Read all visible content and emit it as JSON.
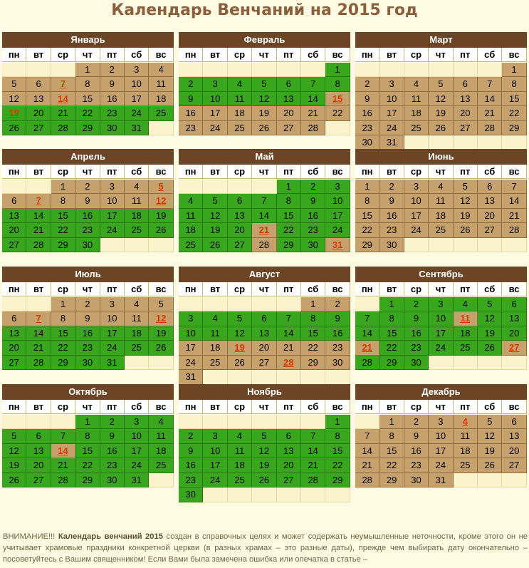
{
  "title": "Календарь Венчаний на 2015 год",
  "weekdays": [
    "пн",
    "вт",
    "ср",
    "чт",
    "пт",
    "сб",
    "вс"
  ],
  "colors": {
    "background": "#fffbe3",
    "header": "#6b4526",
    "allowed": "#38a71e",
    "not_allowed": "#c6a16c",
    "holiday_text": "#d83a00",
    "title": "#8b5e3c"
  },
  "months": [
    {
      "name": "Январь",
      "start": 3,
      "days": 31,
      "green": [
        19,
        20,
        21,
        22,
        23,
        24,
        25,
        26,
        27,
        28,
        29,
        30,
        31
      ],
      "hol": [
        7,
        14,
        19
      ]
    },
    {
      "name": "Февраль",
      "start": 6,
      "days": 28,
      "green": [
        1,
        2,
        3,
        4,
        5,
        6,
        7,
        8,
        9,
        10,
        11,
        12,
        13,
        14
      ],
      "hol": [
        15
      ]
    },
    {
      "name": "Март",
      "start": 6,
      "days": 31,
      "green": [],
      "hol": []
    },
    {
      "name": "Апрель",
      "start": 2,
      "days": 30,
      "green": [
        13,
        14,
        15,
        16,
        17,
        18,
        19,
        20,
        21,
        22,
        23,
        24,
        25,
        26,
        27,
        28,
        29,
        30
      ],
      "hol": [
        5,
        7,
        12
      ]
    },
    {
      "name": "Май",
      "start": 4,
      "days": 31,
      "green": [
        1,
        2,
        3,
        4,
        5,
        6,
        7,
        8,
        9,
        10,
        11,
        12,
        13,
        14,
        15,
        16,
        17,
        18,
        19,
        20,
        22,
        23,
        24,
        25,
        26,
        27,
        29,
        30
      ],
      "hol": [
        21,
        31
      ]
    },
    {
      "name": "Июнь",
      "start": 0,
      "days": 30,
      "green": [],
      "hol": []
    },
    {
      "name": "Июль",
      "start": 2,
      "days": 31,
      "green": [
        13,
        14,
        15,
        16,
        17,
        18,
        19,
        20,
        21,
        22,
        23,
        24,
        25,
        26,
        27,
        28,
        29,
        30,
        31
      ],
      "hol": [
        7,
        12
      ]
    },
    {
      "name": "Август",
      "start": 5,
      "days": 31,
      "green": [
        3,
        4,
        5,
        6,
        7,
        8,
        9,
        10,
        11,
        12,
        13,
        14,
        15,
        16
      ],
      "hol": [
        19,
        28
      ]
    },
    {
      "name": "Сентябрь",
      "start": 1,
      "days": 30,
      "green": [
        1,
        2,
        3,
        4,
        5,
        6,
        7,
        8,
        9,
        10,
        12,
        13,
        14,
        15,
        16,
        17,
        18,
        19,
        20,
        22,
        23,
        24,
        25,
        26,
        28,
        29,
        30
      ],
      "hol": [
        11,
        21,
        27
      ]
    },
    {
      "name": "Октябрь",
      "start": 3,
      "days": 31,
      "green": [
        1,
        2,
        3,
        4,
        5,
        6,
        7,
        8,
        9,
        10,
        11,
        12,
        13,
        15,
        16,
        17,
        18,
        19,
        20,
        21,
        22,
        23,
        24,
        25,
        26,
        27,
        28,
        29,
        30,
        31
      ],
      "hol": [
        14
      ]
    },
    {
      "name": "Ноябрь",
      "start": 6,
      "days": 30,
      "green": [
        1,
        2,
        3,
        4,
        5,
        6,
        7,
        8,
        9,
        10,
        11,
        12,
        13,
        14,
        15,
        16,
        17,
        18,
        19,
        20,
        21,
        22,
        23,
        24,
        25,
        26,
        27,
        28,
        29,
        30
      ],
      "hol": []
    },
    {
      "name": "Декабрь",
      "start": 1,
      "days": 31,
      "green": [],
      "hol": [
        4
      ]
    }
  ],
  "note": {
    "prefix": "ВНИМАНИЕ!!! ",
    "bold": "Календарь венчаний 2015",
    "text": " создан в справочных целях и может содержать неумышленные неточности, кроме этого он не учитывает храмовые праздники конкретной церкви (в разных храмах – это разные даты), прежде чем выбирать дату окончательно – посоветуйтесь с Вашим священником! Если Вами была замечена ошибка или опечатка в статье –"
  }
}
